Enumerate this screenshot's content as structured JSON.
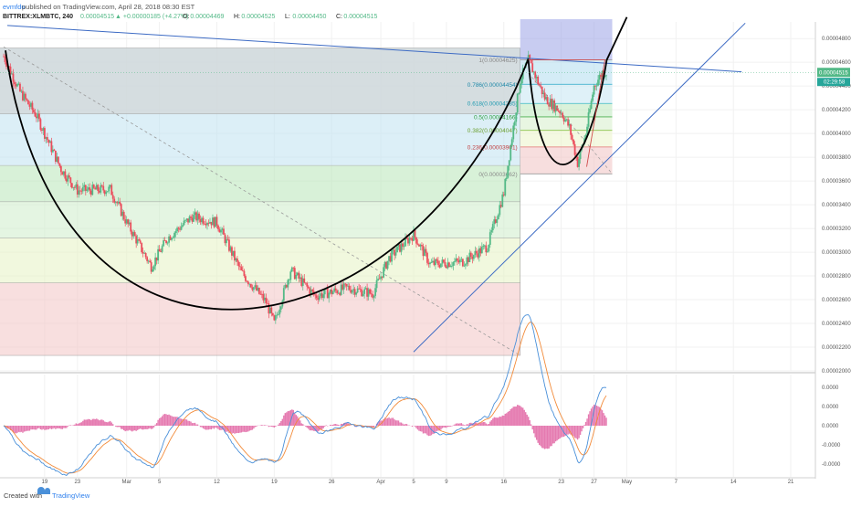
{
  "header": {
    "author": "evmfdu",
    "published": "published on TradingView.com, April 28, 2018 08:30 EST",
    "symbol": "BITTREX:XLMBTC, 240",
    "last": "0.00004515",
    "change": "▲ +0.00000185 (+4.27%)",
    "ohlc": [
      {
        "label": "O:",
        "value": "0.00004469"
      },
      {
        "label": "H:",
        "value": "0.00004525"
      },
      {
        "label": "L:",
        "value": "0.00004450"
      },
      {
        "label": "C:",
        "value": "0.00004515"
      }
    ]
  },
  "footer": {
    "created_with": "Created with",
    "brand": "TradingView"
  },
  "colors": {
    "up": "#53b987",
    "down": "#eb4d5c",
    "trendline": "#3d6bc4",
    "cup": "#000000",
    "macd": "#4a90d9",
    "signal": "#f28b3a",
    "hist": "#e57ab0",
    "price_tag": "#53b987",
    "pitchfork_tag": "#26a69a"
  },
  "price_tag": {
    "value": "0.00004515",
    "countdown": "02:29:58"
  },
  "fib_main": [
    {
      "level": 1,
      "color": "#bdbdbd"
    },
    {
      "level": 0.786,
      "color": "#a6d6e8"
    },
    {
      "level": 0.618,
      "color": "#bfe2f0"
    },
    {
      "level": 0.5,
      "color": "#b8e6b8"
    },
    {
      "level": 0.382,
      "color": "#cdeccb"
    },
    {
      "level": 0.236,
      "color": "#e6f2c2"
    },
    {
      "level": 0,
      "color": "#f2c4c4"
    }
  ],
  "fib_small": [
    {
      "text": "1(0.00004625)",
      "color": "#888888",
      "lcolor": "#9a9a9a"
    },
    {
      "text": "0.786(0.00004454)",
      "color": "#1e88a8",
      "lcolor": "#26a6c6"
    },
    {
      "text": "0.618(0.00004285)",
      "color": "#1e9ab0",
      "lcolor": "#3cb8c8"
    },
    {
      "text": "0.5(0.00004166)",
      "color": "#2e9e3e",
      "lcolor": "#4caf50"
    },
    {
      "text": "0.382(0.00004047)",
      "color": "#6a9e2e",
      "lcolor": "#8bc34a"
    },
    {
      "text": "0.236(0.00003901)",
      "color": "#c04040",
      "lcolor": "#e57373"
    },
    {
      "text": "0(0.00003662)",
      "color": "#888888",
      "lcolor": "#9a9a9a"
    }
  ],
  "price_axis": [
    "0.00004800",
    "0.00004600",
    "0.00004400",
    "0.00004200",
    "0.00004000",
    "0.00003800",
    "0.00003600",
    "0.00003400",
    "0.00003200",
    "0.00003000",
    "0.00002800",
    "0.00002600",
    "0.00002400",
    "0.00002200",
    "0.00002000"
  ],
  "macd_axis": [
    "0.0000",
    "0.0000",
    "0.0000",
    "-0.0000",
    "-0.0000"
  ],
  "time_axis": [
    "19",
    "23",
    "Mar",
    "5",
    "12",
    "19",
    "26",
    "Apr",
    "5",
    "9",
    "16",
    "23",
    "27",
    "May",
    "7",
    "14",
    "21"
  ],
  "chart_data": {
    "type": "candlestick",
    "title": "BITTREX:XLMBTC, 240",
    "x_range": [
      "Feb 14 2018",
      "May 24 2018"
    ],
    "y_range": [
      2e-05,
      4.94e-05
    ],
    "fib_retracement": {
      "high": 4.72e-05,
      "low": 2.13e-05
    },
    "cup": {
      "left_rim": 4.7e-05,
      "bottom": 2.21e-05,
      "right_rim": 4.63e-05
    },
    "anchors": [
      {
        "date": "Feb 14",
        "close": 4.65e-05
      },
      {
        "date": "Feb 16",
        "close": 4.35e-05
      },
      {
        "date": "Feb 18",
        "close": 4.15e-05
      },
      {
        "date": "Feb 21",
        "close": 3.7e-05
      },
      {
        "date": "Feb 23",
        "close": 3.52e-05
      },
      {
        "date": "Feb 27",
        "close": 3.53e-05
      },
      {
        "date": "Mar 1",
        "close": 3.25e-05
      },
      {
        "date": "Mar 4",
        "close": 2.88e-05
      },
      {
        "date": "Mar 6",
        "close": 3.12e-05
      },
      {
        "date": "Mar 9",
        "close": 3.3e-05
      },
      {
        "date": "Mar 12",
        "close": 3.25e-05
      },
      {
        "date": "Mar 15",
        "close": 2.83e-05
      },
      {
        "date": "Mar 18",
        "close": 2.58e-05
      },
      {
        "date": "Mar 19",
        "close": 2.4e-05
      },
      {
        "date": "Mar 21",
        "close": 2.85e-05
      },
      {
        "date": "Mar 24",
        "close": 2.63e-05
      },
      {
        "date": "Mar 28",
        "close": 2.7e-05
      },
      {
        "date": "Mar 31",
        "close": 2.65e-05
      },
      {
        "date": "Apr 2",
        "close": 2.95e-05
      },
      {
        "date": "Apr 5",
        "close": 3.15e-05
      },
      {
        "date": "Apr 7",
        "close": 2.9e-05
      },
      {
        "date": "Apr 11",
        "close": 2.92e-05
      },
      {
        "date": "Apr 14",
        "close": 3.05e-05
      },
      {
        "date": "Apr 16",
        "close": 3.5e-05
      },
      {
        "date": "Apr 18",
        "close": 4.45e-05
      },
      {
        "date": "Apr 19",
        "close": 4.62e-05
      },
      {
        "date": "Apr 21",
        "close": 4.3e-05
      },
      {
        "date": "Apr 23",
        "close": 4.18e-05
      },
      {
        "date": "Apr 24",
        "close": 4.05e-05
      },
      {
        "date": "Apr 25",
        "close": 3.75e-05
      },
      {
        "date": "Apr 26",
        "close": 4e-05
      },
      {
        "date": "Apr 27",
        "close": 4.4e-05
      },
      {
        "date": "Apr 28",
        "close": 4.515e-05
      }
    ],
    "macd_range": [
      -1.6e-06,
      1.6e-06
    ]
  }
}
